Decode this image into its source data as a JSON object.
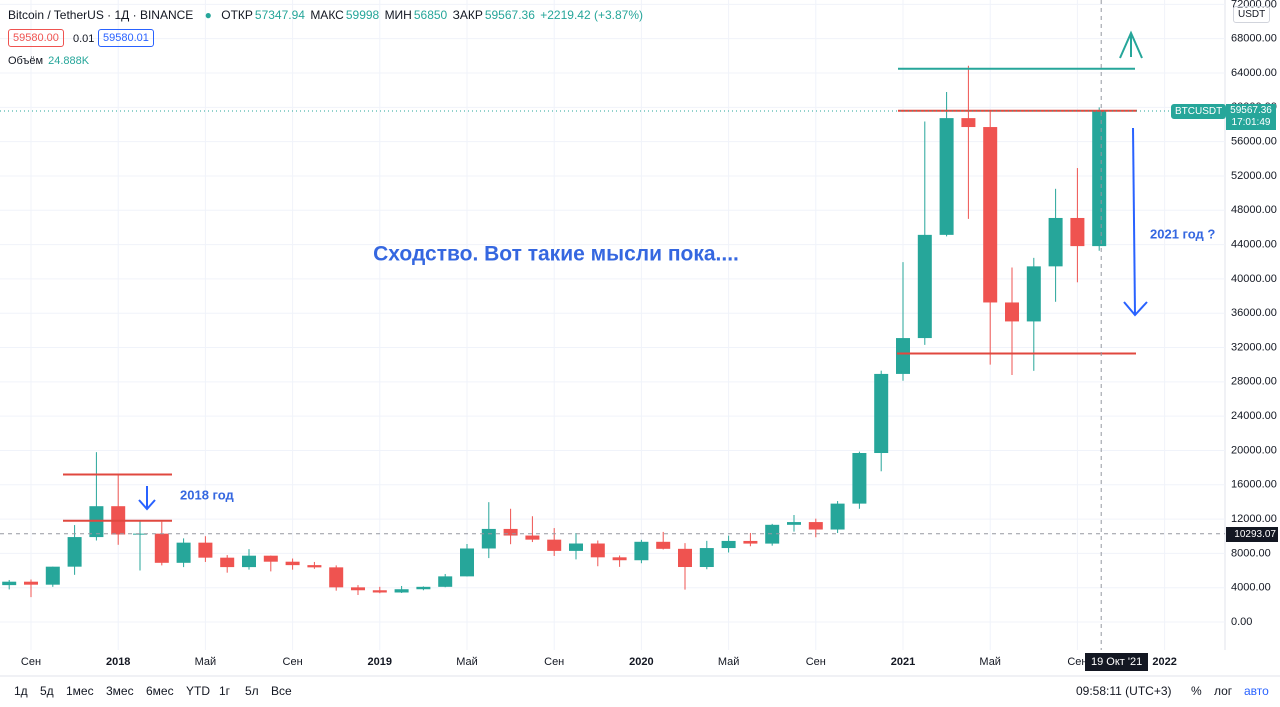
{
  "header": {
    "symbol": "Bitcoin / TetherUS · 1Д · BINANCE",
    "open_label": "ОТКР",
    "open": 57347.94,
    "high_label": "МАКС",
    "high": 59998.0,
    "low_label": "МИН",
    "low": 56850.0,
    "close_label": "ЗАКР",
    "close": 59567.36,
    "change": "+2219.42 (+3.87%)",
    "sell": "59580.00",
    "spread": "0.01",
    "buy": "59580.01",
    "volume_label": "Объём",
    "volume": "24.888K",
    "currency": "USDT"
  },
  "chart_data": {
    "type": "candlestick",
    "categories": [
      null,
      "Сен",
      null,
      null,
      null,
      "2018",
      null,
      null,
      null,
      "Май",
      null,
      null,
      null,
      "Сен",
      null,
      null,
      null,
      "2019",
      null,
      null,
      null,
      "Май",
      null,
      null,
      null,
      "Сен",
      null,
      null,
      null,
      "2020",
      null,
      null,
      null,
      "Май",
      null,
      null,
      null,
      "Сен",
      null,
      null,
      null,
      "2021",
      null,
      null,
      null,
      "Май",
      null,
      null,
      null,
      "Сен",
      null,
      null,
      null,
      "2022"
    ],
    "open": [
      4300,
      4700,
      4350,
      6450,
      9900,
      13500,
      10200,
      10300,
      6900,
      9250,
      7500,
      6400,
      7730,
      7030,
      6630,
      6370,
      4040,
      3700,
      3440,
      3820,
      4100,
      5320,
      8570,
      10850,
      10080,
      9600,
      8290,
      9150,
      7540,
      7200,
      9350,
      8530,
      6410,
      8620,
      9450,
      9140,
      11330,
      11650,
      10780,
      13800,
      19700,
      28920,
      33100,
      45130,
      58740,
      57700,
      37250,
      35040,
      41460,
      47100,
      43820,
      null,
      null,
      null
    ],
    "high": [
      4900,
      4950,
      6450,
      11300,
      19800,
      17200,
      11800,
      11700,
      9750,
      10000,
      7800,
      8500,
      7750,
      7400,
      7000,
      6600,
      4300,
      4100,
      4200,
      4150,
      5600,
      9100,
      13970,
      13200,
      12330,
      10950,
      10370,
      9500,
      7750,
      9580,
      10500,
      9190,
      9460,
      10070,
      10380,
      11440,
      12470,
      12050,
      14100,
      19860,
      29300,
      41950,
      58350,
      61780,
      64850,
      59500,
      41330,
      42450,
      50500,
      52920,
      60000,
      null,
      null,
      null
    ],
    "low": [
      3800,
      2900,
      4100,
      5500,
      9500,
      9000,
      6000,
      6600,
      6400,
      7000,
      5750,
      6100,
      5900,
      6100,
      6200,
      3650,
      3150,
      3350,
      3380,
      3700,
      4050,
      5300,
      7450,
      9070,
      9320,
      7700,
      7300,
      6500,
      6430,
      6850,
      8450,
      3780,
      6150,
      8100,
      8830,
      8900,
      10530,
      9880,
      10370,
      13200,
      17570,
      28130,
      32300,
      44950,
      47000,
      30000,
      28800,
      29280,
      37330,
      39600,
      43280,
      null,
      null,
      null
    ],
    "close": [
      4700,
      4350,
      6450,
      9900,
      13500,
      10200,
      10300,
      6900,
      9250,
      7500,
      6400,
      7730,
      7030,
      6630,
      6370,
      4040,
      3700,
      3440,
      3820,
      4100,
      5320,
      8570,
      10850,
      10080,
      9600,
      8290,
      9150,
      7540,
      7200,
      9350,
      8530,
      6410,
      8620,
      9450,
      9140,
      11330,
      11650,
      10780,
      13800,
      19700,
      28920,
      33100,
      45130,
      58740,
      57700,
      37250,
      35040,
      41460,
      47100,
      43820,
      59567.36,
      null,
      null,
      null
    ],
    "up_color": "#26a69a",
    "down_color": "#ef5350",
    "ylim": [
      -3264,
      72510
    ],
    "yticks": [
      {
        "value": 0,
        "label": "0.00"
      },
      {
        "value": 4000,
        "label": "4000.00"
      },
      {
        "value": 8000,
        "label": "8000.00"
      },
      {
        "value": 12000,
        "label": "12000.00"
      },
      {
        "value": 16000,
        "label": "16000.00"
      },
      {
        "value": 20000,
        "label": "20000.00"
      },
      {
        "value": 24000,
        "label": "24000.00"
      },
      {
        "value": 28000,
        "label": "28000.00"
      },
      {
        "value": 32000,
        "label": "32000.00"
      },
      {
        "value": 36000,
        "label": "36000.00"
      },
      {
        "value": 40000,
        "label": "40000.00"
      },
      {
        "value": 44000,
        "label": "44000.00"
      },
      {
        "value": 48000,
        "label": "48000.00"
      },
      {
        "value": 52000,
        "label": "52000.00"
      },
      {
        "value": 56000,
        "label": "56000.00"
      },
      {
        "value": 60000,
        "label": "60000.00"
      },
      {
        "value": 64000,
        "label": "64000.00"
      },
      {
        "value": 68000,
        "label": "68000.00"
      },
      {
        "value": 72000,
        "label": "72000.00"
      }
    ],
    "levels": [
      {
        "value": 64500,
        "color": "#26a69a"
      },
      {
        "value": 59600,
        "color": "#e0483f"
      },
      {
        "value": 31300,
        "color": "#e0483f"
      },
      {
        "value": 17200,
        "color": "#e0483f"
      },
      {
        "value": 11800,
        "color": "#e0483f"
      }
    ],
    "annotations": [
      "Сходство. Вот такие мысли пока....",
      "2018 год",
      "2021 год ?"
    ],
    "price_tag": {
      "symbol": "BTCUSDT",
      "countdown": "17:01:49"
    },
    "crosshair": {
      "price": 10293.07,
      "date": "19 Окт '21"
    }
  },
  "toolbar": {
    "ranges": [
      "1д",
      "5д",
      "1мес",
      "3мес",
      "6мес",
      "YTD",
      "1г",
      "5л",
      "Все"
    ],
    "clock": "09:58:11 (UTC+3)",
    "percent": "%",
    "log": "лог",
    "auto": "авто"
  }
}
